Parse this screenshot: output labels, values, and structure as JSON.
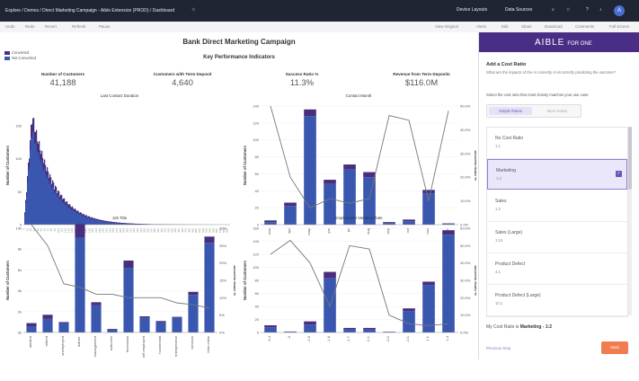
{
  "topbar": {
    "breadcrumb": "Explore / Demos / Direct Marketing Campaign - Aible Extension (PROD) / Dashboard",
    "device_layouts": "Device Layouts",
    "data_sources": "Data Sources",
    "avatar": "A"
  },
  "toolbar": {
    "undo": "Undo",
    "redo": "Redo",
    "revert": "Revert",
    "refresh": "Refresh",
    "pause": "Pause",
    "view_original": "View Original",
    "alerts": "Alerts",
    "edit": "Edit",
    "share": "Share",
    "download": "Download",
    "comments": "Comments",
    "full_screen": "Full Screen"
  },
  "dashboard": {
    "title": "Bank Direct Marketing Campaign",
    "kpi_title": "Key Performance Indicators",
    "legend": [
      {
        "label": "Converted",
        "color": "#4a2e7e"
      },
      {
        "label": "Not Converted",
        "color": "#3a57b0"
      }
    ],
    "kpis": [
      {
        "label": "Number of Customers",
        "value": "41,188"
      },
      {
        "label": "Customers with Term Deposit",
        "value": "4,640"
      },
      {
        "label": "Success Ratio %",
        "value": "11.3%"
      },
      {
        "label": "Revenue from Term Deposits",
        "value": "$116.0M"
      }
    ]
  },
  "colors": {
    "converted": "#4a2e7e",
    "not_converted": "#3a57b0",
    "line": "#777777",
    "accent": "#4a2e86",
    "next_button": "#f07d4f"
  },
  "chart_data": [
    {
      "type": "bar",
      "title": "Last Contact Duration",
      "ylabel": "Number of Customers",
      "ylim": [
        0,
        180
      ],
      "yticks": [
        "0",
        "50",
        "100",
        "150"
      ],
      "shape": "histogram, peak ~175 near 1.5% of range, long right tail"
    },
    {
      "type": "bar",
      "title": "Contact Month",
      "ylabel": "Number of Customers",
      "y2label": "Success Ratio %",
      "ylim": [
        0,
        140
      ],
      "yticks": [
        "0",
        "20",
        "40",
        "60",
        "80",
        "100",
        "120",
        "140"
      ],
      "y2ticks": [
        "0.0%",
        "10.0%",
        "20.0%",
        "30.0%",
        "40.0%",
        "50.0%"
      ],
      "categories": [
        "mar",
        "apr",
        "may",
        "jun",
        "jul",
        "aug",
        "sep",
        "oct",
        "nov",
        "dec"
      ],
      "series": [
        {
          "name": "Not Converted",
          "values": [
            3,
            22,
            128,
            48,
            65,
            56,
            2,
            4,
            37,
            1
          ]
        },
        {
          "name": "Converted",
          "values": [
            2,
            4,
            8,
            5,
            6,
            6,
            1,
            2,
            4,
            0.5
          ]
        },
        {
          "name": "Success Ratio %",
          "values": [
            50,
            20,
            7,
            11,
            9,
            11,
            46,
            44,
            10,
            48
          ]
        }
      ]
    },
    {
      "type": "bar",
      "title": "Job Title",
      "ylabel": "Number of Customers",
      "y2label": "Success Ratio %",
      "ylim": [
        0,
        10
      ],
      "yticks": [
        "0k",
        "2k",
        "4k",
        "6k",
        "8k",
        "10k"
      ],
      "y2ticks": [
        "0%",
        "5%",
        "10%",
        "15%",
        "20%",
        "25%",
        "30%"
      ],
      "categories": [
        "student",
        "retired",
        "unemployed",
        "admin.",
        "management",
        "unknown",
        "technician",
        "self-employed",
        "housemaid",
        "entrepreneur",
        "services",
        "blue-collar"
      ],
      "series": [
        {
          "name": "Not Converted",
          "values": [
            0.6,
            1.3,
            0.9,
            9.1,
            2.6,
            0.3,
            6.2,
            1.4,
            1.0,
            1.4,
            3.6,
            8.6
          ]
        },
        {
          "name": "Converted",
          "values": [
            0.3,
            0.4,
            0.1,
            1.3,
            0.3,
            0.04,
            0.7,
            0.15,
            0.1,
            0.1,
            0.3,
            0.6
          ]
        },
        {
          "name": "Success Ratio %",
          "values": [
            31,
            25,
            14,
            13,
            11,
            11,
            10,
            10,
            10,
            8.5,
            8,
            7
          ]
        }
      ]
    },
    {
      "type": "bar",
      "title": "Employment Variation Rate",
      "ylabel": "Number of Customers",
      "y2label": "Success Ratio %",
      "ylim": [
        0,
        160
      ],
      "yticks": [
        "0",
        "20",
        "40",
        "60",
        "80",
        "100",
        "120",
        "140",
        "160"
      ],
      "y2ticks": [
        "0.0%",
        "10.0%",
        "20.0%",
        "30.0%",
        "40.0%",
        "50.0%",
        "60.0%"
      ],
      "categories": [
        "-3.4",
        "-3",
        "-2.9",
        "-1.8",
        "-1.7",
        "-1.1",
        "-0.2",
        "-0.1",
        "1.1",
        "1.4"
      ],
      "series": [
        {
          "name": "Not Converted",
          "values": [
            8,
            1,
            12,
            83,
            5,
            5,
            1,
            33,
            73,
            150
          ]
        },
        {
          "name": "Converted",
          "values": [
            3,
            0.5,
            5,
            10,
            2,
            2,
            0.2,
            4,
            5,
            7
          ]
        },
        {
          "name": "Success Ratio %",
          "values": [
            45,
            53,
            40,
            15,
            50,
            48,
            10,
            5,
            4,
            5
          ]
        }
      ]
    }
  ],
  "sidebar": {
    "brand": "AIBLE",
    "brand_sub": "FOR ONE",
    "heading": "Add a Cost Ratio",
    "question": "What are the impacts of the AI correctly or incorrectly predicting the outcome?",
    "pick_label": "Select the cost ratio that most closely matches your use case:",
    "tab_simple": "Simple Ratios",
    "tab_more": "More Ratios",
    "options": [
      {
        "title": "No Cost Ratio",
        "sub": "1:1",
        "selected": false
      },
      {
        "title": "Marketing",
        "sub": "1:2",
        "selected": true
      },
      {
        "title": "Sales",
        "sub": "1:3",
        "selected": false
      },
      {
        "title": "Sales (Large)",
        "sub": "1:10",
        "selected": false
      },
      {
        "title": "Product Defect",
        "sub": "4:1",
        "selected": false
      },
      {
        "title": "Product Defect (Large)",
        "sub": "10:1",
        "selected": false
      }
    ],
    "ratio_prefix": "My Cost Ratio is",
    "ratio_value": "Marketing - 1:2",
    "previous": "Previous Step",
    "next": "Next"
  }
}
